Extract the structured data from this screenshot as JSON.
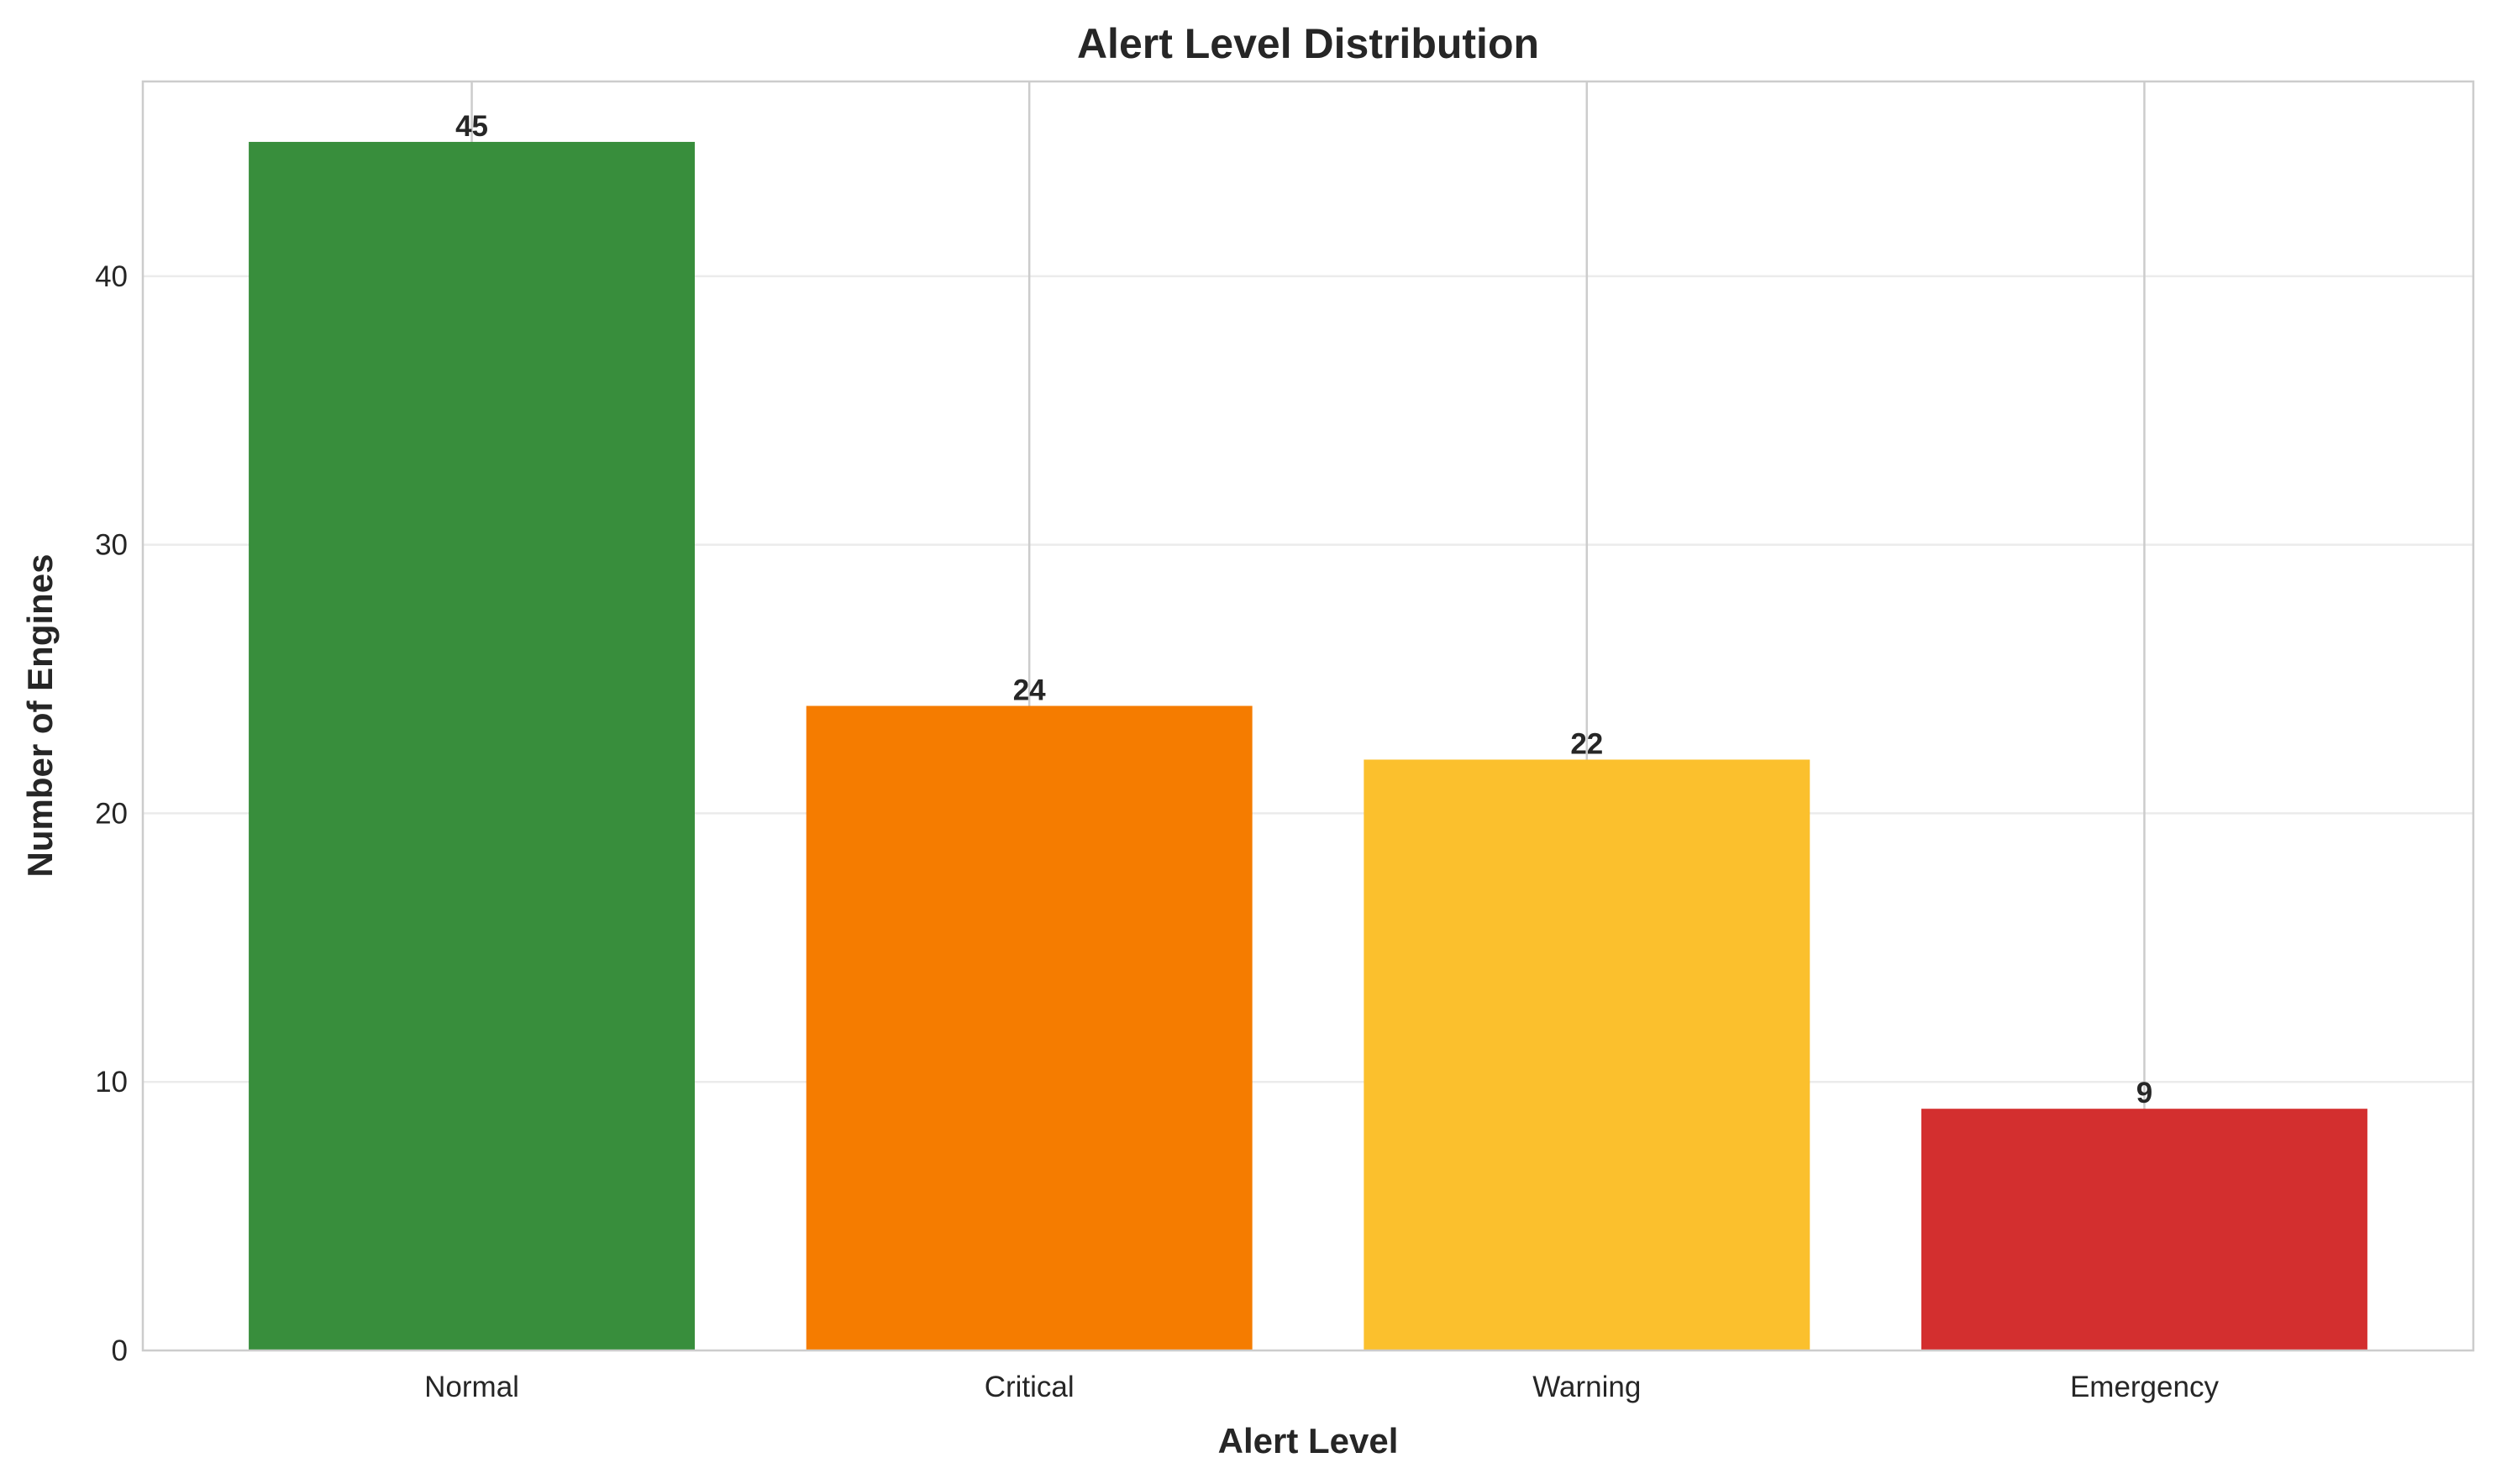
{
  "chart_data": {
    "type": "bar",
    "title": "Alert Level Distribution",
    "xlabel": "Alert Level",
    "ylabel": "Number of Engines",
    "categories": [
      "Normal",
      "Critical",
      "Warning",
      "Emergency"
    ],
    "values": [
      45,
      24,
      22,
      9
    ],
    "data_labels": [
      "45",
      "24",
      "22",
      "9"
    ],
    "colors": [
      "#388e3c",
      "#f57c00",
      "#fbc02d",
      "#d32f2f"
    ],
    "ylim": [
      0,
      47.25
    ],
    "yticks": [
      0,
      10,
      20,
      30,
      40
    ],
    "ytick_labels": [
      "0",
      "10",
      "20",
      "30",
      "40"
    ],
    "grid": true,
    "legend": "none"
  }
}
